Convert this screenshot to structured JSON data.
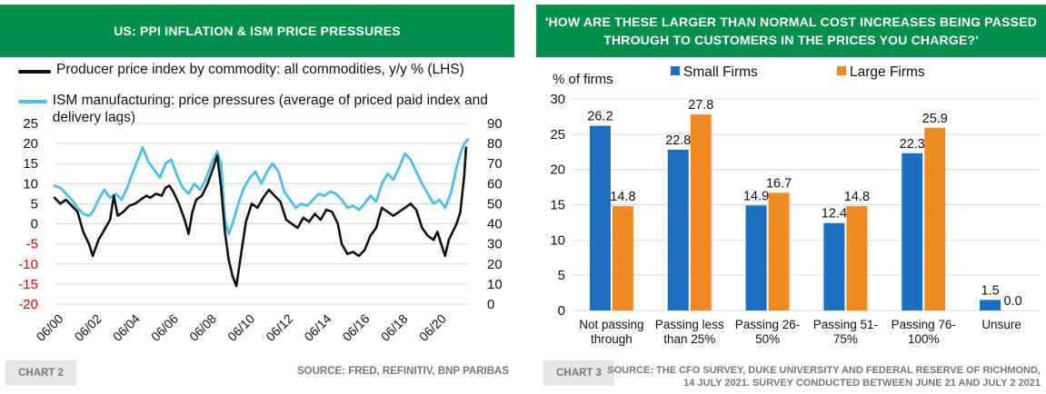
{
  "left": {
    "title": "US: PPI INFLATION & ISM PRICE PRESSURES",
    "legend": [
      {
        "label": "Producer price index by commodity: all commodities, y/y % (LHS)",
        "color": "#111111"
      },
      {
        "label": "ISM manufacturing: price pressures (average of priced paid index and delivery lags)",
        "color": "#4fbfe8"
      }
    ],
    "chart_tag": "CHART 2",
    "source": "SOURCE: FRED, REFINITIV, BNP PARIBAS"
  },
  "right": {
    "title": "'HOW ARE THESE LARGER THAN NORMAL COST INCREASES BEING PASSED THROUGH TO CUSTOMERS IN THE PRICES YOU CHARGE?'",
    "chart_tag": "CHART 3",
    "source_line1": "SOURCE: THE CFO SURVEY, DUKE UNIVERSITY AND FEDERAL RESERVE OF RICHMOND,",
    "source_line2": "14 JULY 2021. SURVEY CONDUCTED BETWEEN JUNE 21 AND JULY 2 2021"
  },
  "chart_data": [
    {
      "type": "line",
      "title": "US: PPI INFLATION & ISM PRICE PRESSURES",
      "x_ticks": [
        "06/00",
        "06/02",
        "06/04",
        "06/06",
        "06/08",
        "06/10",
        "06/12",
        "06/14",
        "06/16",
        "06/18",
        "06/20"
      ],
      "x_range": [
        2000.0,
        2021.6
      ],
      "y_left": {
        "range": [
          -20,
          25
        ],
        "ticks": [
          25,
          20,
          15,
          10,
          5,
          0,
          -5,
          -10,
          -15,
          -20
        ],
        "negative_color": "#e00000"
      },
      "y_right": {
        "range": [
          0,
          90
        ],
        "ticks": [
          90,
          80,
          70,
          60,
          50,
          40,
          30,
          20,
          10,
          0
        ]
      },
      "grid": "horizontal",
      "series": [
        {
          "name": "Producer price index by commodity: all commodities, y/y % (LHS)",
          "axis": "left",
          "color": "#111111",
          "x": [
            2000.0,
            2000.3,
            2000.6,
            2000.9,
            2001.2,
            2001.5,
            2001.8,
            2002.0,
            2002.3,
            2002.6,
            2002.9,
            2003.1,
            2003.3,
            2003.6,
            2003.9,
            2004.2,
            2004.5,
            2004.8,
            2005.0,
            2005.3,
            2005.6,
            2005.8,
            2006.0,
            2006.2,
            2006.5,
            2006.8,
            2007.0,
            2007.2,
            2007.4,
            2007.7,
            2008.0,
            2008.3,
            2008.5,
            2008.7,
            2008.9,
            2009.1,
            2009.3,
            2009.5,
            2009.7,
            2010.0,
            2010.3,
            2010.6,
            2010.9,
            2011.2,
            2011.5,
            2011.8,
            2012.1,
            2012.4,
            2012.7,
            2013.0,
            2013.3,
            2013.6,
            2013.9,
            2014.2,
            2014.5,
            2014.8,
            2015.0,
            2015.3,
            2015.6,
            2015.9,
            2016.2,
            2016.5,
            2016.8,
            2017.1,
            2017.4,
            2017.7,
            2018.0,
            2018.3,
            2018.6,
            2018.9,
            2019.2,
            2019.5,
            2019.8,
            2020.0,
            2020.2,
            2020.4,
            2020.6,
            2020.8,
            2021.0,
            2021.2,
            2021.4,
            2021.5
          ],
          "values": [
            6.5,
            5.0,
            6.0,
            4.5,
            3.0,
            -2.0,
            -5.0,
            -8.0,
            -4.0,
            -1.5,
            1.0,
            7.0,
            2.0,
            3.0,
            4.5,
            5.0,
            6.0,
            7.0,
            6.5,
            7.5,
            7.0,
            9.0,
            9.5,
            8.0,
            5.0,
            1.0,
            -2.5,
            3.0,
            6.0,
            7.0,
            10.0,
            14.0,
            17.0,
            9.0,
            -2.0,
            -9.0,
            -13.0,
            -15.5,
            -9.0,
            0.5,
            5.0,
            4.0,
            6.5,
            8.5,
            7.0,
            5.5,
            1.0,
            0.0,
            -1.0,
            1.5,
            0.5,
            2.5,
            1.0,
            3.5,
            3.0,
            0.0,
            -5.0,
            -7.5,
            -7.0,
            -8.0,
            -6.5,
            -3.0,
            -1.0,
            4.0,
            3.0,
            2.0,
            3.0,
            4.0,
            5.0,
            3.5,
            -1.0,
            -3.0,
            -4.0,
            -2.0,
            -5.0,
            -8.0,
            -4.0,
            -2.0,
            0.0,
            3.0,
            12.0,
            19.0
          ]
        },
        {
          "name": "ISM manufacturing: price pressures (average of priced paid index and delivery lags)",
          "axis": "right",
          "color": "#4fbfe8",
          "x": [
            2000.0,
            2000.3,
            2000.6,
            2000.9,
            2001.2,
            2001.5,
            2001.8,
            2002.0,
            2002.3,
            2002.6,
            2002.9,
            2003.2,
            2003.5,
            2003.8,
            2004.1,
            2004.4,
            2004.6,
            2004.9,
            2005.2,
            2005.5,
            2005.8,
            2006.1,
            2006.4,
            2006.7,
            2007.0,
            2007.3,
            2007.6,
            2007.9,
            2008.2,
            2008.5,
            2008.7,
            2008.9,
            2009.1,
            2009.3,
            2009.6,
            2009.9,
            2010.2,
            2010.5,
            2010.8,
            2011.1,
            2011.4,
            2011.7,
            2012.0,
            2012.3,
            2012.6,
            2012.9,
            2013.2,
            2013.5,
            2013.8,
            2014.1,
            2014.4,
            2014.7,
            2015.0,
            2015.3,
            2015.6,
            2015.9,
            2016.2,
            2016.5,
            2016.8,
            2017.1,
            2017.4,
            2017.7,
            2018.0,
            2018.3,
            2018.6,
            2018.9,
            2019.2,
            2019.5,
            2019.8,
            2020.1,
            2020.4,
            2020.7,
            2021.0,
            2021.2,
            2021.4,
            2021.6
          ],
          "values": [
            59,
            58,
            55,
            52,
            48,
            45,
            44,
            46,
            52,
            57,
            53,
            55,
            52,
            58,
            66,
            73,
            78,
            71,
            67,
            63,
            70,
            72,
            64,
            58,
            55,
            60,
            57,
            62,
            70,
            76,
            70,
            42,
            35,
            40,
            50,
            58,
            63,
            66,
            60,
            66,
            70,
            66,
            56,
            52,
            48,
            50,
            49,
            52,
            55,
            54,
            56,
            55,
            52,
            48,
            49,
            47,
            50,
            54,
            51,
            60,
            65,
            62,
            68,
            75,
            72,
            66,
            60,
            55,
            50,
            52,
            48,
            55,
            68,
            75,
            80,
            82
          ]
        }
      ]
    },
    {
      "type": "bar",
      "title": "'HOW ARE THESE LARGER THAN NORMAL COST INCREASES BEING PASSED THROUGH TO CUSTOMERS IN THE PRICES YOU CHARGE?'",
      "ylabel": "% of firms",
      "ylim": [
        0,
        30
      ],
      "yticks": [
        0,
        5,
        10,
        15,
        20,
        25,
        30
      ],
      "grid": "horizontal",
      "categories": [
        [
          "Not passing",
          "through"
        ],
        [
          "Passing less",
          "than 25%"
        ],
        [
          "Passing 26-",
          "50%"
        ],
        [
          "Passing 51-",
          "75%"
        ],
        [
          "Passing 76-",
          "100%"
        ],
        [
          "Unsure"
        ]
      ],
      "series": [
        {
          "name": "Small Firms",
          "color": "#1b6ec2",
          "values": [
            26.2,
            22.8,
            14.9,
            12.4,
            22.3,
            1.5
          ],
          "labels": [
            "26.2",
            "22.8",
            "14.9",
            "12.4",
            "22.3",
            "1.5"
          ]
        },
        {
          "name": "Large Firms",
          "color": "#f08a24",
          "values": [
            14.8,
            27.8,
            16.7,
            14.8,
            25.9,
            0.0
          ],
          "labels": [
            "14.8",
            "27.8",
            "16.7",
            "14.8",
            "25.9",
            "0.0"
          ]
        }
      ]
    }
  ]
}
